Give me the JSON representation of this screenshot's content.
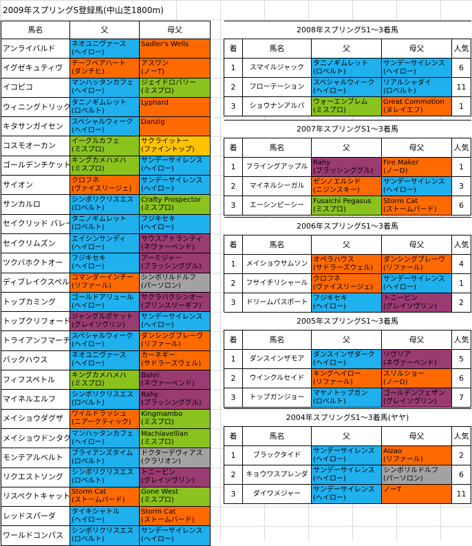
{
  "title": "2009年スプリングS登録馬(中山芝1800m)",
  "left": {
    "headers": [
      "馬名",
      "父",
      "母父"
    ],
    "rows": [
      {
        "name": "アンライバルド",
        "sire": [
          "ネオユニヴァース",
          "(ヘイロー)"
        ],
        "sc": "blue",
        "bms": [
          "Sadler's Wells",
          ""
        ],
        "bc": "orange"
      },
      {
        "name": "イグゼキュティヴ",
        "sire": [
          "チーフベアハート",
          "(ダンチヒ)"
        ],
        "sc": "orange",
        "bms": [
          "アスワン",
          "(ノーT)"
        ],
        "bc": "orange"
      },
      {
        "name": "イコピコ",
        "sire": [
          "マンハッタンカフェ",
          "(ヘイロー)"
        ],
        "sc": "blue",
        "bms": [
          "ジェイドロバリー",
          "(ミスプロ)"
        ],
        "bc": "green"
      },
      {
        "name": "ウィニングトリック",
        "sire": [
          "タニノギムレット",
          "(ロベルト)"
        ],
        "sc": "blue",
        "bms": [
          "Lyphard",
          ""
        ],
        "bc": "orange"
      },
      {
        "name": "キタサンガイセン",
        "sire": [
          "スペシャルウィーク",
          "(ヘイロー)"
        ],
        "sc": "blue",
        "bms": [
          "Danzig",
          ""
        ],
        "bc": "orange"
      },
      {
        "name": "コスモオーカン",
        "sire": [
          "イーグルカフェ",
          "(ミスプロ)"
        ],
        "sc": "green",
        "bms": [
          "サクライットー",
          "(ファイントップ)"
        ],
        "bc": "yellow"
      },
      {
        "name": "ゴールデンチケット",
        "sire": [
          "キングカメハメハ",
          "(ミスプロ)"
        ],
        "sc": "green",
        "bms": [
          "サンデーサイレンス",
          "(ヘイロー)"
        ],
        "bc": "blue"
      },
      {
        "name": "サイオン",
        "sire": [
          "クロフネ",
          "(ヴァイスリージェ)"
        ],
        "sc": "orange",
        "bms": [
          "サンデーサイレンス",
          "(ヘイロー)"
        ],
        "bc": "blue"
      },
      {
        "name": "サンカルロ",
        "sire": [
          "シンボリクリスエス",
          "(ロベルト)"
        ],
        "sc": "blue",
        "bms": [
          "Crafty Prospector",
          "(ミスプロ)"
        ],
        "bc": "green"
      },
      {
        "name": "セイクリッド バレー",
        "sire": [
          "タニノギムレット",
          "(ロベルト)"
        ],
        "sc": "blue",
        "bms": [
          "フジキセキ",
          "(ヘイロー)"
        ],
        "bc": "blue"
      },
      {
        "name": "セイクリムズン",
        "sire": [
          "エイシンサンディ",
          "(ヘイロー)"
        ],
        "sc": "blue",
        "bms": [
          "サウスアトランティ",
          "(ネヴァーベンド)"
        ],
        "bc": "purple"
      },
      {
        "name": "ツクバホクトオー",
        "sire": [
          "フジキセキ",
          "(ヘイロー)"
        ],
        "sc": "blue",
        "bms": [
          "アーミジャー",
          "(ブラッシンググル)"
        ],
        "bc": "purple"
      },
      {
        "name": "ディブレイクスペル",
        "sire": [
          "コマンダーインチー",
          "(リファール)"
        ],
        "sc": "orange",
        "bms": [
          "シンボリルドルフ",
          "(パーソロン)"
        ],
        "bc": "gray"
      },
      {
        "name": "トップカミング",
        "sire": [
          "ゴールドアリュール",
          "(ヘイロー)"
        ],
        "sc": "blue",
        "bms": [
          "サクラバクシンオー",
          "(プリンスリーギフ)"
        ],
        "bc": "purple"
      },
      {
        "name": "トップクリフォード",
        "sire": [
          "ジャングルポケット",
          "(グレイソヴリン)"
        ],
        "sc": "purple",
        "bms": [
          "サンデーサイレンス",
          "(ヘイロー)"
        ],
        "bc": "blue"
      },
      {
        "name": "トライアンフマーチ",
        "sire": [
          "スペシャルウィーク",
          "(ヘイロー)"
        ],
        "sc": "blue",
        "bms": [
          "ダンシングブレーヴ",
          "(リファール)"
        ],
        "bc": "orange"
      },
      {
        "name": "バックハウス",
        "sire": [
          "ネオユニヴァース",
          "(ヘイロー)"
        ],
        "sc": "blue",
        "bms": [
          "カーネギー",
          "(サドラーズウェル)"
        ],
        "bc": "orange"
      },
      {
        "name": "フィフスペトル",
        "sire": [
          "キングカメハメハ",
          "(ミスプロ)"
        ],
        "sc": "green",
        "bms": [
          "Bahri",
          "(ネヴァーベンド)"
        ],
        "bc": "purple"
      },
      {
        "name": "マイネルエルフ",
        "sire": [
          "シンボリクリスエス",
          "(ロベルト)"
        ],
        "sc": "blue",
        "bms": [
          "Rahy",
          "(ブラッシンググル)"
        ],
        "bc": "purple"
      },
      {
        "name": "メイショウダグザ",
        "sire": [
          "ワイルドラッシュ",
          "(ニアークティック)"
        ],
        "sc": "orange",
        "bms": [
          "Kingmambo",
          "(ミスプロ)"
        ],
        "bc": "green"
      },
      {
        "name": "メイショウドンタク",
        "sire": [
          "マンハッタンカフェ",
          "(ヘイロー)"
        ],
        "sc": "blue",
        "bms": [
          "Machiavellian",
          "(ミスプロ)"
        ],
        "bc": "green"
      },
      {
        "name": "モンテアルベルト",
        "sire": [
          "ブライアンズタイム",
          "(ロベルト)"
        ],
        "sc": "blue",
        "bms": [
          "ドクターデヴィアス",
          "(クラリオン)"
        ],
        "bc": "gray"
      },
      {
        "name": "リクエストソング",
        "sire": [
          "シンボリクリスエス",
          "(ロベルト)"
        ],
        "sc": "blue",
        "bms": [
          "トニービン",
          "(グレイソヴリン)"
        ],
        "bc": "purple"
      },
      {
        "name": "リスペクトキャット",
        "sire": [
          "Storm Cat",
          "(ストームバード)"
        ],
        "sc": "orange",
        "bms": [
          "Gone West",
          "(ミスプロ)"
        ],
        "bc": "green"
      },
      {
        "name": "レッドスパーダ",
        "sire": [
          "タイキシャトル",
          "(ヘイロー)"
        ],
        "sc": "blue",
        "bms": [
          "Storm Cat",
          "(ストームバード)"
        ],
        "bc": "orange"
      },
      {
        "name": "ワールドコンパス",
        "sire": [
          "シンボリクリスエス",
          "(ロベルト)"
        ],
        "sc": "blue",
        "bms": [
          "サンデーサイレンス",
          "(ヘイロー)"
        ],
        "bc": "blue"
      }
    ]
  },
  "results_headers": [
    "着",
    "馬名",
    "父",
    "母父",
    "人気"
  ],
  "results": [
    {
      "caption": "2008年スプリングS1～3着馬",
      "rows": [
        {
          "pos": "1",
          "name": "スマイルジャック",
          "sire": [
            "タニノギムレット",
            "(ロベルト)"
          ],
          "sc": "blue",
          "bms": [
            "サンデーサイレンス",
            "(ヘイロー)"
          ],
          "bc": "blue",
          "pop": "6"
        },
        {
          "pos": "2",
          "name": "フローテーション",
          "sire": [
            "スペシャルウィーク",
            "(ヘイロー)"
          ],
          "sc": "blue",
          "bms": [
            "リアルシャダイ",
            "(ロベルト)"
          ],
          "bc": "blue",
          "pop": "11"
        },
        {
          "pos": "3",
          "name": "ショウナンアルバ",
          "sire": [
            "ウォーエンブレム",
            "(ミスプロ)"
          ],
          "sc": "green",
          "bms": [
            "Great Commotion",
            "(ヌレイエフ)"
          ],
          "bc": "orange",
          "pop": "1"
        }
      ]
    },
    {
      "caption": "2007年スプリングS1～3着馬",
      "rows": [
        {
          "pos": "1",
          "name": "フライングアップル",
          "sire": [
            "Rahy",
            "(ブラッシンググル)"
          ],
          "sc": "purple",
          "bms": [
            "Fire Maker",
            "(ノーD)"
          ],
          "bc": "orange",
          "pop": "1"
        },
        {
          "pos": "2",
          "name": "マイネルシーガル",
          "sire": [
            "ゼンノエルシド",
            "(ニジンスキー)"
          ],
          "sc": "orange",
          "bms": [
            "サンデーサイレンス",
            "(ヘイロー)"
          ],
          "bc": "blue",
          "pop": "3"
        },
        {
          "pos": "3",
          "name": "エーシンピーシー",
          "sire": [
            "Fusaichi Pegasus",
            "(ミスプロ)"
          ],
          "sc": "green",
          "bms": [
            "Storm Cat",
            "(ストームバード)"
          ],
          "bc": "orange",
          "pop": "6"
        }
      ]
    },
    {
      "caption": "2006年スプリングS1～3着馬",
      "rows": [
        {
          "pos": "1",
          "name": "メイショウサムソン",
          "sire": [
            "オペラハウス",
            "(サドラーズウェル)"
          ],
          "sc": "orange",
          "bms": [
            "ダンシングブレーヴ",
            "(リファール)"
          ],
          "bc": "orange",
          "pop": "4"
        },
        {
          "pos": "2",
          "name": "フサイチリシャール",
          "sire": [
            "クロフネ",
            "(ヴァイスリージェ)"
          ],
          "sc": "orange",
          "bms": [
            "サンデーサイレンス",
            "(ヘイロー)"
          ],
          "bc": "blue",
          "pop": "1"
        },
        {
          "pos": "3",
          "name": "ドリームパスポート",
          "sire": [
            "フジキセキ",
            "(ヘイロー)"
          ],
          "sc": "blue",
          "bms": [
            "トニービン",
            "(グレイソヴリン)"
          ],
          "bc": "purple",
          "pop": "2"
        }
      ]
    },
    {
      "caption": "2005年スプリングS1～3着馬",
      "rows": [
        {
          "pos": "1",
          "name": "ダンスインザモア",
          "sire": [
            "ダンスインザダーク",
            "(ヘイロー)"
          ],
          "sc": "blue",
          "bms": [
            "リヴリア",
            "(ネヴァーベンド)"
          ],
          "bc": "purple",
          "pop": "5"
        },
        {
          "pos": "2",
          "name": "ウインクルセイド",
          "sire": [
            "キングヘイロー",
            "(リファール)"
          ],
          "sc": "orange",
          "bms": [
            "スリルショー",
            "(ノーD)"
          ],
          "bc": "orange",
          "pop": "6"
        },
        {
          "pos": "3",
          "name": "トップガンジョー",
          "sire": [
            "マヤノトップガン",
            "(ロベルト)"
          ],
          "sc": "blue",
          "bms": [
            "ゴールデンフェザン",
            "(グレイソヴリン)"
          ],
          "bc": "purple",
          "pop": "7"
        }
      ]
    },
    {
      "caption": "2004年スプリングS1～3着馬(ヤヤ)",
      "rows": [
        {
          "pos": "1",
          "name": "ブラックタイド",
          "sire": [
            "サンデーサイレンス",
            "(ヘイロー)"
          ],
          "sc": "blue",
          "bms": [
            "Alzao",
            "(リファール)"
          ],
          "bc": "orange",
          "pop": "2"
        },
        {
          "pos": "2",
          "name": "キョウワスプレンダ",
          "sire": [
            "サンデーサイレンス",
            "(ヘイロー)"
          ],
          "sc": "blue",
          "bms": [
            "シンボリルドルフ",
            "(パーソロン)"
          ],
          "bc": "gray",
          "pop": "6"
        },
        {
          "pos": "3",
          "name": "ダイワメジャー",
          "sire": [
            "サンデーサイレンス",
            "(ヘイロー)"
          ],
          "sc": "blue",
          "bms": [
            "ノーT",
            ""
          ],
          "bc": "orange",
          "pop": "11"
        }
      ]
    }
  ],
  "colors": {
    "blue": "#1fb0ee",
    "orange": "#ff6a00",
    "green": "#8ac21e",
    "purple": "#9a3b72",
    "yellow": "#ffc200",
    "gray": "#a8a8a8"
  }
}
